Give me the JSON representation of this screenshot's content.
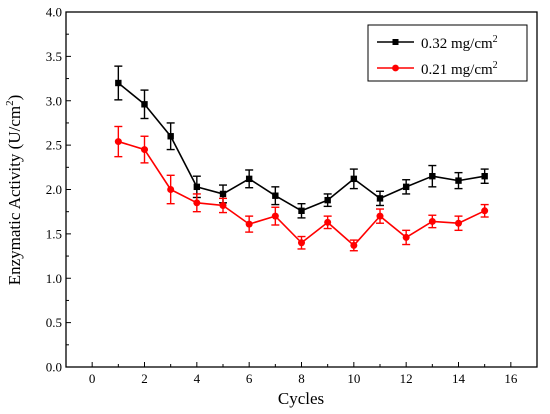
{
  "chart_data": {
    "type": "line",
    "title": "",
    "xlabel": "Cycles",
    "ylabel": "Enzymatic Activity (U/cm",
    "ylabel_sup": "2",
    "ylabel_close": ")",
    "xlim": [
      -1,
      17
    ],
    "ylim": [
      0.0,
      4.0
    ],
    "xticks": [
      0,
      2,
      4,
      6,
      8,
      10,
      12,
      14,
      16
    ],
    "xtick_labels": [
      "0",
      "2",
      "4",
      "6",
      "8",
      "10",
      "12",
      "14",
      "16"
    ],
    "yticks": [
      0.0,
      0.5,
      1.0,
      1.5,
      2.0,
      2.5,
      3.0,
      3.5,
      4.0
    ],
    "ytick_labels": [
      "0.0",
      "0.5",
      "1.0",
      "1.5",
      "2.0",
      "2.5",
      "3.0",
      "3.5",
      "4.0"
    ],
    "grid": false,
    "legend_position": "top-right",
    "x": [
      1,
      2,
      3,
      4,
      5,
      6,
      7,
      8,
      9,
      10,
      11,
      12,
      13,
      14,
      15
    ],
    "series": [
      {
        "name": "0.32 mg/cm",
        "name_sup": "2",
        "color": "#000000",
        "marker": "square",
        "values": [
          3.2,
          2.96,
          2.6,
          2.03,
          1.95,
          2.12,
          1.93,
          1.76,
          1.88,
          2.12,
          1.9,
          2.03,
          2.15,
          2.1,
          2.15
        ],
        "errors": [
          0.19,
          0.16,
          0.15,
          0.12,
          0.1,
          0.1,
          0.1,
          0.08,
          0.07,
          0.11,
          0.08,
          0.08,
          0.12,
          0.09,
          0.08
        ]
      },
      {
        "name": "0.21 mg/cm",
        "name_sup": "2",
        "color": "#ff0000",
        "marker": "circle",
        "values": [
          2.54,
          2.45,
          2.0,
          1.85,
          1.82,
          1.61,
          1.7,
          1.4,
          1.63,
          1.37,
          1.7,
          1.46,
          1.64,
          1.62,
          1.76
        ],
        "errors": [
          0.17,
          0.15,
          0.16,
          0.1,
          0.08,
          0.09,
          0.1,
          0.07,
          0.07,
          0.06,
          0.08,
          0.08,
          0.07,
          0.08,
          0.07
        ]
      }
    ]
  }
}
